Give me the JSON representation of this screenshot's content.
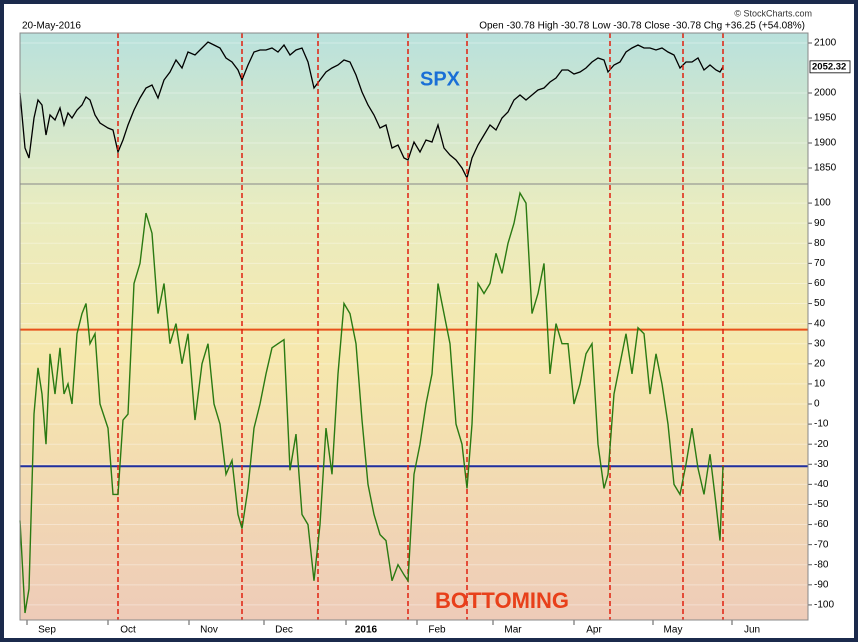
{
  "header": {
    "date": "20-May-2016",
    "quote": "Open -30.78 High -30.78 Low -30.78 Close -30.78 Chg +36.25 (+54.08%)",
    "credit": "© StockCharts.com"
  },
  "chart_data": [
    {
      "type": "line",
      "annotation": "SPX",
      "x": [
        0,
        1.25,
        2.25,
        3.5,
        4.5,
        5.5,
        6.5,
        7.5,
        8.75,
        10,
        11,
        12,
        13,
        14.25,
        15.5,
        16.5,
        17.5,
        18.75,
        20,
        22,
        23.25,
        24.5,
        25.75,
        27,
        28.5,
        30,
        31.5,
        33,
        34.5,
        36,
        37.5,
        39,
        40.5,
        42,
        43.75,
        45.5,
        47,
        48.5,
        50,
        51.5,
        53,
        54.5,
        55.5,
        57,
        58.5,
        60,
        61.5,
        63,
        64.5,
        66,
        67.5,
        69,
        70.5,
        72,
        73.5,
        75,
        76.5,
        78,
        79.5,
        81,
        82.5,
        84,
        85.5,
        87,
        88.5,
        90,
        91.5,
        93,
        94.5,
        96,
        97,
        98.5,
        100,
        101.5,
        103,
        104.5,
        106,
        107.5,
        109,
        110.5,
        111.75,
        113,
        114.5,
        116,
        117.5,
        119,
        120.5,
        122,
        123.5,
        125,
        126.5,
        128,
        129.5,
        131,
        132.5,
        134,
        135.5,
        137,
        138.5,
        140,
        141.5,
        143,
        144.5,
        146,
        147,
        148.5,
        150,
        151.5,
        153,
        154.5,
        156,
        157.5,
        159,
        160.5,
        162,
        163.5,
        165,
        166.5,
        168,
        169.5,
        171,
        172.5,
        174,
        175,
        175.75
      ],
      "xlim": [
        0,
        197
      ],
      "series": [
        {
          "name": "SPX",
          "color": "#000000",
          "values": [
            2000,
            1890,
            1870,
            1950,
            1986,
            1976,
            1916,
            1956,
            1946,
            1970,
            1936,
            1960,
            1950,
            1966,
            1976,
            1992,
            1986,
            1956,
            1940,
            1930,
            1926,
            1882,
            1906,
            1936,
            1966,
            1990,
            2010,
            2016,
            1990,
            2026,
            2042,
            2066,
            2050,
            2082,
            2076,
            2090,
            2102,
            2096,
            2090,
            2070,
            2062,
            2046,
            2026,
            2056,
            2082,
            2086,
            2086,
            2090,
            2082,
            2096,
            2076,
            2086,
            2090,
            2062,
            2010,
            2026,
            2042,
            2050,
            2056,
            2066,
            2062,
            2036,
            2002,
            1976,
            1956,
            1930,
            1936,
            1890,
            1896,
            1870,
            1866,
            1902,
            1882,
            1906,
            1902,
            1936,
            1890,
            1876,
            1866,
            1850,
            1830,
            1870,
            1896,
            1916,
            1936,
            1926,
            1950,
            1962,
            1986,
            1996,
            1986,
            1996,
            2006,
            2010,
            2022,
            2030,
            2046,
            2046,
            2038,
            2042,
            2050,
            2062,
            2070,
            2066,
            2042,
            2056,
            2062,
            2082,
            2090,
            2096,
            2090,
            2090,
            2086,
            2090,
            2082,
            2076,
            2050,
            2062,
            2062,
            2070,
            2046,
            2056,
            2046,
            2042,
            2052.32
          ]
        }
      ],
      "ylim": [
        1818,
        2120
      ],
      "yticks": [
        1850,
        1900,
        1950,
        2000,
        2100
      ],
      "grid": true
    },
    {
      "type": "line",
      "annotation": "BOTTOMING",
      "x": [
        0,
        1.25,
        2.25,
        3.5,
        4.5,
        5.5,
        6.5,
        7.5,
        8.75,
        10,
        11,
        12,
        13,
        14.25,
        15.5,
        16.5,
        17.5,
        18.75,
        20,
        22,
        23.25,
        24.5,
        25.75,
        27,
        28.5,
        30,
        31.5,
        33,
        34.5,
        36,
        37.5,
        39,
        40.5,
        42,
        43.75,
        45.5,
        47,
        48.5,
        50,
        51.5,
        53,
        54.5,
        55.5,
        57,
        58.5,
        60,
        61.5,
        63,
        64.5,
        66,
        67.5,
        69,
        70.5,
        72,
        73.5,
        75,
        76.5,
        78,
        79.5,
        81,
        82.5,
        84,
        85.5,
        87,
        88.5,
        90,
        91.5,
        93,
        94.5,
        96,
        97,
        98.5,
        100,
        101.5,
        103,
        104.5,
        106,
        107.5,
        109,
        110.5,
        111.75,
        113,
        114.5,
        116,
        117.5,
        119,
        120.5,
        122,
        123.5,
        125,
        126.5,
        128,
        129.5,
        131,
        132.5,
        134,
        135.5,
        137,
        138.5,
        140,
        141.5,
        143,
        144.5,
        146,
        147,
        148.5,
        150,
        151.5,
        153,
        154.5,
        156,
        157.5,
        159,
        160.5,
        162,
        163.5,
        165,
        166.5,
        168,
        169.5,
        171,
        172.5,
        174,
        175,
        175.75
      ],
      "xlim": [
        0,
        197
      ],
      "xticks": [
        {
          "value": 6.75,
          "label": "Sep"
        },
        {
          "value": 27,
          "label": "Oct"
        },
        {
          "value": 47.25,
          "label": "Nov"
        },
        {
          "value": 66,
          "label": "Dec"
        },
        {
          "value": 86.5,
          "label": "2016"
        },
        {
          "value": 104.25,
          "label": "Feb"
        },
        {
          "value": 123.25,
          "label": "Mar"
        },
        {
          "value": 143.5,
          "label": "Apr"
        },
        {
          "value": 163.25,
          "label": "May"
        },
        {
          "value": 183,
          "label": "Jun"
        }
      ],
      "series": [
        {
          "color": "#2a7a12",
          "values": [
            -58,
            -104,
            -92,
            -5,
            18,
            5,
            -20,
            25,
            5,
            28,
            5,
            10,
            0,
            35,
            45,
            50,
            30,
            35,
            0,
            -12,
            -45,
            -45,
            -8,
            -5,
            60,
            70,
            95,
            85,
            45,
            60,
            30,
            40,
            20,
            35,
            -8,
            20,
            30,
            0,
            -10,
            -35,
            -28,
            -55,
            -62,
            -42,
            -12,
            0,
            15,
            28,
            30,
            32,
            -33,
            -15,
            -55,
            -60,
            -88,
            -60,
            -12,
            -35,
            15,
            50,
            45,
            30,
            -8,
            -40,
            -55,
            -65,
            -68,
            -88,
            -80,
            -85,
            -88,
            -35,
            -20,
            0,
            15,
            60,
            45,
            30,
            -10,
            -20,
            -42,
            -10,
            60,
            55,
            60,
            75,
            65,
            80,
            90,
            105,
            100,
            45,
            55,
            70,
            15,
            40,
            30,
            30,
            0,
            10,
            25,
            30,
            -20,
            -42,
            -35,
            5,
            20,
            35,
            15,
            38,
            35,
            5,
            25,
            10,
            -10,
            -40,
            -45,
            -30,
            -12,
            -32,
            -45,
            -25,
            -50,
            -68,
            -30.78
          ]
        }
      ],
      "ylim": [
        -107.5,
        109.5
      ],
      "yticks": [
        -100,
        -90,
        -80,
        -70,
        -60,
        -50,
        -40,
        -30,
        -20,
        -10,
        0,
        10,
        20,
        30,
        40,
        50,
        60,
        70,
        80,
        90,
        100
      ],
      "grid": true,
      "vlines": [
        24.5,
        55.5,
        74.5,
        97,
        111.75,
        147.5,
        165.75,
        175.75
      ],
      "vline_color": "#e0200f",
      "hlines": [
        {
          "value": 37,
          "color": "#e8501a"
        },
        {
          "value": -31,
          "color": "#1f2fa0"
        }
      ]
    }
  ]
}
